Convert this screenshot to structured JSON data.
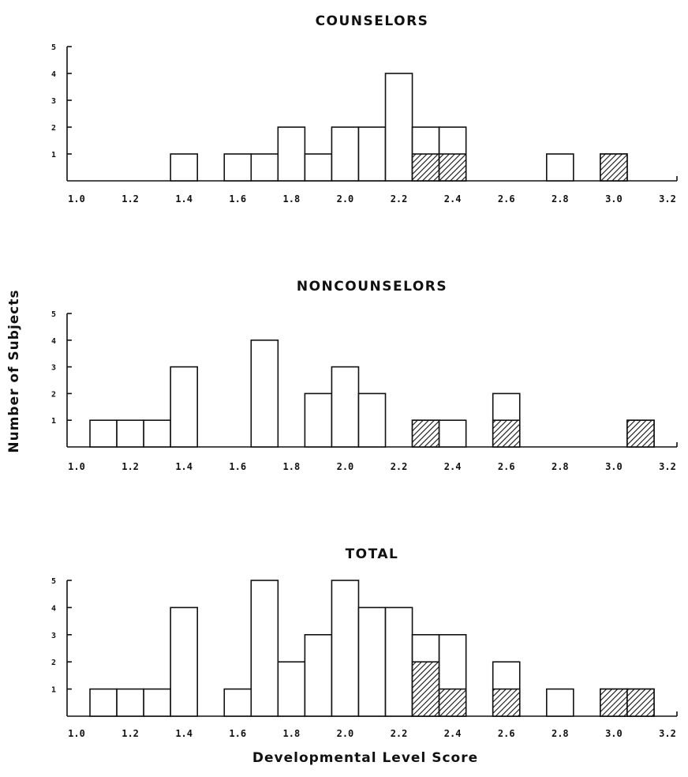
{
  "ylabel": "Number of Subjects",
  "xlabel": "Developmental Level Score",
  "chart_data": [
    {
      "type": "bar",
      "title": "COUNSELORS",
      "xlim": [
        1.0,
        3.2
      ],
      "ylim": [
        0,
        5
      ],
      "x_ticks": [
        "1.0",
        "1.2",
        "1.4",
        "1.6",
        "1.8",
        "2.0",
        "2.2",
        "2.4",
        "2.6",
        "2.8",
        "3.0",
        "3.2"
      ],
      "y_ticks": [
        "1",
        "2",
        "3",
        "4",
        "5"
      ],
      "bin_width": 0.1,
      "bins": [
        {
          "x": 1.4,
          "total": 1,
          "shaded": 0
        },
        {
          "x": 1.6,
          "total": 1,
          "shaded": 0
        },
        {
          "x": 1.7,
          "total": 1,
          "shaded": 0
        },
        {
          "x": 1.8,
          "total": 2,
          "shaded": 0
        },
        {
          "x": 1.9,
          "total": 1,
          "shaded": 0
        },
        {
          "x": 2.0,
          "total": 2,
          "shaded": 0
        },
        {
          "x": 2.1,
          "total": 2,
          "shaded": 0
        },
        {
          "x": 2.2,
          "total": 4,
          "shaded": 0
        },
        {
          "x": 2.3,
          "total": 2,
          "shaded": 1
        },
        {
          "x": 2.4,
          "total": 2,
          "shaded": 1
        },
        {
          "x": 2.8,
          "total": 1,
          "shaded": 0
        },
        {
          "x": 3.0,
          "total": 1,
          "shaded": 1
        }
      ]
    },
    {
      "type": "bar",
      "title": "NONCOUNSELORS",
      "xlim": [
        1.0,
        3.2
      ],
      "ylim": [
        0,
        5
      ],
      "x_ticks": [
        "1.0",
        "1.2",
        "1.4",
        "1.6",
        "1.8",
        "2.0",
        "2.2",
        "2.4",
        "2.6",
        "2.8",
        "3.0",
        "3.2"
      ],
      "y_ticks": [
        "1",
        "2",
        "3",
        "4",
        "5"
      ],
      "bin_width": 0.1,
      "bins": [
        {
          "x": 1.1,
          "total": 1,
          "shaded": 0
        },
        {
          "x": 1.2,
          "total": 1,
          "shaded": 0
        },
        {
          "x": 1.3,
          "total": 1,
          "shaded": 0
        },
        {
          "x": 1.4,
          "total": 3,
          "shaded": 0
        },
        {
          "x": 1.7,
          "total": 4,
          "shaded": 0
        },
        {
          "x": 1.9,
          "total": 2,
          "shaded": 0
        },
        {
          "x": 2.0,
          "total": 3,
          "shaded": 0
        },
        {
          "x": 2.1,
          "total": 2,
          "shaded": 0
        },
        {
          "x": 2.3,
          "total": 1,
          "shaded": 1
        },
        {
          "x": 2.4,
          "total": 1,
          "shaded": 0
        },
        {
          "x": 2.6,
          "total": 2,
          "shaded": 1
        },
        {
          "x": 3.1,
          "total": 1,
          "shaded": 1
        }
      ]
    },
    {
      "type": "bar",
      "title": "TOTAL",
      "xlim": [
        1.0,
        3.2
      ],
      "ylim": [
        0,
        5
      ],
      "x_ticks": [
        "1.0",
        "1.2",
        "1.4",
        "1.6",
        "1.8",
        "2.0",
        "2.2",
        "2.4",
        "2.6",
        "2.8",
        "3.0",
        "3.2"
      ],
      "y_ticks": [
        "1",
        "2",
        "3",
        "4",
        "5"
      ],
      "bin_width": 0.1,
      "bins": [
        {
          "x": 1.1,
          "total": 1,
          "shaded": 0
        },
        {
          "x": 1.2,
          "total": 1,
          "shaded": 0
        },
        {
          "x": 1.3,
          "total": 1,
          "shaded": 0
        },
        {
          "x": 1.4,
          "total": 4,
          "shaded": 0
        },
        {
          "x": 1.6,
          "total": 1,
          "shaded": 0
        },
        {
          "x": 1.7,
          "total": 5,
          "shaded": 0
        },
        {
          "x": 1.8,
          "total": 2,
          "shaded": 0
        },
        {
          "x": 1.9,
          "total": 3,
          "shaded": 0
        },
        {
          "x": 2.0,
          "total": 5,
          "shaded": 0
        },
        {
          "x": 2.1,
          "total": 4,
          "shaded": 0
        },
        {
          "x": 2.2,
          "total": 4,
          "shaded": 0
        },
        {
          "x": 2.3,
          "total": 3,
          "shaded": 2
        },
        {
          "x": 2.4,
          "total": 3,
          "shaded": 1
        },
        {
          "x": 2.6,
          "total": 2,
          "shaded": 1
        },
        {
          "x": 2.8,
          "total": 1,
          "shaded": 0
        },
        {
          "x": 3.0,
          "total": 1,
          "shaded": 1
        },
        {
          "x": 3.1,
          "total": 1,
          "shaded": 1
        }
      ]
    }
  ]
}
